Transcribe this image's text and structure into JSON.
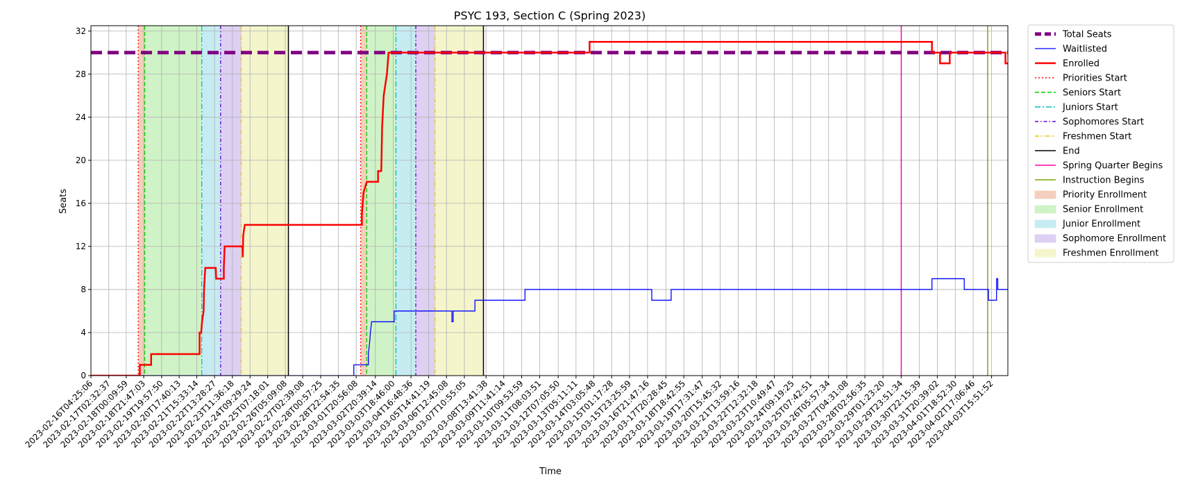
{
  "chart_data": {
    "type": "line",
    "title": "PSYC 193, Section C (Spring 2023)",
    "xlabel": "Time",
    "ylabel": "Seats",
    "ylim": [
      0,
      32.5
    ],
    "yticks": [
      0,
      4,
      8,
      12,
      16,
      20,
      24,
      28,
      32
    ],
    "x_range": [
      "2023-02-16T04:25:06",
      "2023-04-04T12:00:00"
    ],
    "grid": true,
    "legend_position": "outside-right",
    "xtick_labels": [
      "2023-02-16T04:25:06",
      "2023-02-17T02:32:37",
      "2023-02-18T00:09:59",
      "2023-02-18T21:47:03",
      "2023-02-19T19:57:50",
      "2023-02-20T17:40:13",
      "2023-02-21T15:33:14",
      "2023-02-22T13:28:27",
      "2023-02-23T11:36:18",
      "2023-02-24T09:29:24",
      "2023-02-25T07:18:01",
      "2023-02-26T05:09:08",
      "2023-02-27T02:39:08",
      "2023-02-28T00:57:25",
      "2023-02-28T22:54:35",
      "2023-03-01T20:56:08",
      "2023-03-02T20:39:14",
      "2023-03-03T18:46:00",
      "2023-03-04T16:48:36",
      "2023-03-05T14:41:19",
      "2023-03-06T12:45:08",
      "2023-03-07T10:55:05",
      "2023-03-08T13:41:38",
      "2023-03-09T11:41:14",
      "2023-03-10T09:53:59",
      "2023-03-11T08:03:51",
      "2023-03-12T07:05:50",
      "2023-03-13T05:11:11",
      "2023-03-14T03:05:48",
      "2023-03-15T01:17:28",
      "2023-03-15T23:25:59",
      "2023-03-16T21:47:16",
      "2023-03-17T20:28:45",
      "2023-03-18T18:42:55",
      "2023-03-19T17:31:47",
      "2023-03-20T15:45:32",
      "2023-03-21T13:59:16",
      "2023-03-22T12:32:18",
      "2023-03-23T10:49:47",
      "2023-03-24T09:19:25",
      "2023-03-25T07:42:51",
      "2023-03-26T05:57:34",
      "2023-03-27T04:31:08",
      "2023-03-28T02:56:35",
      "2023-03-29T01:23:20",
      "2023-03-29T23:51:34",
      "2023-03-30T22:15:39",
      "2023-03-31T20:39:02",
      "2023-04-01T18:52:30",
      "2023-04-02T17:06:46",
      "2023-04-03T15:51:52"
    ],
    "series": [
      {
        "name": "Total Seats",
        "color": "#800080",
        "style": "dashed-thick",
        "points": [
          [
            "2023-02-16T04:25:06",
            30
          ],
          [
            "2023-04-04T12:00:00",
            30
          ]
        ]
      },
      {
        "name": "Waitlisted",
        "color": "#0000ff",
        "style": "solid-thin",
        "points": [
          [
            "2023-02-16T04:25:06",
            0
          ],
          [
            "2023-03-01T18:00:00",
            0
          ],
          [
            "2023-03-01T18:00:00",
            1
          ],
          [
            "2023-03-02T12:00:00",
            1
          ],
          [
            "2023-03-02T12:00:00",
            2
          ],
          [
            "2023-03-02T13:30:00",
            3
          ],
          [
            "2023-03-02T14:30:00",
            4
          ],
          [
            "2023-03-02T16:00:00",
            5
          ],
          [
            "2023-03-03T20:00:00",
            5
          ],
          [
            "2023-03-03T20:00:00",
            6
          ],
          [
            "2023-03-06T19:30:00",
            6
          ],
          [
            "2023-03-06T19:30:00",
            5
          ],
          [
            "2023-03-06T21:00:00",
            5
          ],
          [
            "2023-03-06T21:00:00",
            6
          ],
          [
            "2023-03-08T00:00:00",
            6
          ],
          [
            "2023-03-08T00:00:00",
            7
          ],
          [
            "2023-03-10T14:00:00",
            7
          ],
          [
            "2023-03-10T14:00:00",
            8
          ],
          [
            "2023-03-17T03:00:00",
            8
          ],
          [
            "2023-03-17T03:00:00",
            7
          ],
          [
            "2023-03-18T03:00:00",
            7
          ],
          [
            "2023-03-18T03:00:00",
            8
          ],
          [
            "2023-03-31T14:00:00",
            8
          ],
          [
            "2023-03-31T14:00:00",
            9
          ],
          [
            "2023-04-02T06:00:00",
            9
          ],
          [
            "2023-04-02T06:00:00",
            8
          ],
          [
            "2023-04-03T12:00:00",
            8
          ],
          [
            "2023-04-03T12:00:00",
            7
          ],
          [
            "2023-04-03T22:00:00",
            7
          ],
          [
            "2023-04-03T22:00:00",
            9
          ],
          [
            "2023-04-03T23:30:00",
            9
          ],
          [
            "2023-04-03T23:30:00",
            8
          ],
          [
            "2023-04-04T12:00:00",
            8
          ]
        ]
      },
      {
        "name": "Enrolled",
        "color": "#ff0000",
        "style": "solid-thick",
        "points": [
          [
            "2023-02-16T04:25:06",
            0
          ],
          [
            "2023-02-18T17:00:00",
            0
          ],
          [
            "2023-02-18T17:00:00",
            1
          ],
          [
            "2023-02-19T07:00:00",
            1
          ],
          [
            "2023-02-19T07:00:00",
            2
          ],
          [
            "2023-02-21T19:00:00",
            2
          ],
          [
            "2023-02-21T19:00:00",
            4
          ],
          [
            "2023-02-21T21:00:00",
            4
          ],
          [
            "2023-02-21T22:00:00",
            5
          ],
          [
            "2023-02-22T00:00:00",
            6
          ],
          [
            "2023-02-22T00:30:00",
            8
          ],
          [
            "2023-02-22T02:00:00",
            10
          ],
          [
            "2023-02-22T15:00:00",
            10
          ],
          [
            "2023-02-22T15:30:00",
            9
          ],
          [
            "2023-02-23T01:00:00",
            9
          ],
          [
            "2023-02-23T01:00:00",
            10
          ],
          [
            "2023-02-23T02:00:00",
            12
          ],
          [
            "2023-02-24T00:00:00",
            12
          ],
          [
            "2023-02-24T00:30:00",
            11
          ],
          [
            "2023-02-24T01:00:00",
            13
          ],
          [
            "2023-02-24T03:00:00",
            14
          ],
          [
            "2023-03-02T04:00:00",
            14
          ],
          [
            "2023-03-02T04:00:00",
            15
          ],
          [
            "2023-03-02T06:00:00",
            17
          ],
          [
            "2023-03-02T10:00:00",
            18
          ],
          [
            "2023-03-03T00:00:00",
            18
          ],
          [
            "2023-03-03T00:00:00",
            19
          ],
          [
            "2023-03-03T04:00:00",
            19
          ],
          [
            "2023-03-03T05:00:00",
            23
          ],
          [
            "2023-03-03T07:00:00",
            26
          ],
          [
            "2023-03-03T09:00:00",
            27
          ],
          [
            "2023-03-03T11:00:00",
            28
          ],
          [
            "2023-03-03T13:00:00",
            30
          ],
          [
            "2023-03-13T22:00:00",
            30
          ],
          [
            "2023-03-13T22:00:00",
            31
          ],
          [
            "2023-03-31T14:00:00",
            31
          ],
          [
            "2023-03-31T14:00:00",
            30
          ],
          [
            "2023-04-01T00:00:00",
            30
          ],
          [
            "2023-04-01T00:00:00",
            29
          ],
          [
            "2023-04-01T12:00:00",
            29
          ],
          [
            "2023-04-01T12:00:00",
            30
          ],
          [
            "2023-04-04T09:00:00",
            30
          ],
          [
            "2023-04-04T09:00:00",
            29
          ],
          [
            "2023-04-04T12:00:00",
            29
          ]
        ]
      }
    ],
    "vlines": [
      {
        "name": "Priorities Start",
        "color": "#ff0000",
        "style": "dotted",
        "x": [
          "2023-02-18T15:00:00",
          "2023-03-02T02:30:00"
        ]
      },
      {
        "name": "Seniors Start",
        "color": "#00cc00",
        "style": "dashed",
        "x": [
          "2023-02-18T23:00:00",
          "2023-03-02T10:00:00"
        ]
      },
      {
        "name": "Juniors Start",
        "color": "#00bfbf",
        "style": "dashdot",
        "x": [
          "2023-02-21T21:40:00",
          "2023-03-03T22:10:00"
        ]
      },
      {
        "name": "Sophomores Start",
        "color": "#6600cc",
        "style": "densedashdot",
        "x": [
          "2023-02-22T21:00:00",
          "2023-03-04T22:45:00"
        ]
      },
      {
        "name": "Freshmen Start",
        "color": "#e6c800",
        "style": "dashdotdot",
        "x": [
          "2023-02-23T22:30:00",
          "2023-03-05T22:30:00"
        ]
      },
      {
        "name": "End",
        "color": "#000000",
        "style": "solid",
        "x": [
          "2023-02-26T09:00:00",
          "2023-03-08T10:30:00"
        ]
      },
      {
        "name": "Spring Quarter Begins",
        "color": "#ff00aa",
        "style": "solid",
        "x": [
          "2023-03-30T00:00:00"
        ]
      },
      {
        "name": "Instruction Begins",
        "color": "#77aa00",
        "style": "solid",
        "x": [
          "2023-04-03T11:00:00"
        ]
      }
    ],
    "spans": [
      {
        "name": "Priority Enrollment",
        "color": "#f4cfbd",
        "ranges": [
          [
            "2023-02-18T15:00:00",
            "2023-02-18T23:00:00"
          ],
          [
            "2023-03-02T02:30:00",
            "2023-03-02T10:00:00"
          ]
        ]
      },
      {
        "name": "Senior Enrollment",
        "color": "#cff3c6",
        "ranges": [
          [
            "2023-02-18T23:00:00",
            "2023-02-21T21:40:00"
          ],
          [
            "2023-03-02T10:00:00",
            "2023-03-03T22:10:00"
          ]
        ]
      },
      {
        "name": "Junior Enrollment",
        "color": "#c6ecf2",
        "ranges": [
          [
            "2023-02-21T21:40:00",
            "2023-02-22T21:00:00"
          ],
          [
            "2023-03-03T22:10:00",
            "2023-03-04T22:45:00"
          ]
        ]
      },
      {
        "name": "Sophomore Enrollment",
        "color": "#ddd0f2",
        "ranges": [
          [
            "2023-02-22T21:00:00",
            "2023-02-23T22:30:00"
          ],
          [
            "2023-03-04T22:45:00",
            "2023-03-05T22:30:00"
          ]
        ]
      },
      {
        "name": "Freshmen Enrollment",
        "color": "#f5f5cc",
        "ranges": [
          [
            "2023-02-23T22:30:00",
            "2023-02-26T09:00:00"
          ],
          [
            "2023-03-05T22:30:00",
            "2023-03-08T10:30:00"
          ]
        ]
      }
    ],
    "legend": [
      {
        "label": "Total Seats",
        "kind": "line",
        "color": "#800080",
        "style": "dashed-thick"
      },
      {
        "label": "Waitlisted",
        "kind": "line",
        "color": "#0000ff",
        "style": "solid-thin"
      },
      {
        "label": "Enrolled",
        "kind": "line",
        "color": "#ff0000",
        "style": "solid-thick"
      },
      {
        "label": "Priorities Start",
        "kind": "line",
        "color": "#ff0000",
        "style": "dotted"
      },
      {
        "label": "Seniors Start",
        "kind": "line",
        "color": "#00cc00",
        "style": "dashed"
      },
      {
        "label": "Juniors Start",
        "kind": "line",
        "color": "#00bfbf",
        "style": "dashdot"
      },
      {
        "label": "Sophomores Start",
        "kind": "line",
        "color": "#6600cc",
        "style": "densedashdot"
      },
      {
        "label": "Freshmen Start",
        "kind": "line",
        "color": "#e6c800",
        "style": "dashdotdot"
      },
      {
        "label": "End",
        "kind": "line",
        "color": "#000000",
        "style": "solid"
      },
      {
        "label": "Spring Quarter Begins",
        "kind": "line",
        "color": "#ff00aa",
        "style": "solid"
      },
      {
        "label": "Instruction Begins",
        "kind": "line",
        "color": "#77aa00",
        "style": "solid"
      },
      {
        "label": "Priority Enrollment",
        "kind": "patch",
        "color": "#f4cfbd"
      },
      {
        "label": "Senior Enrollment",
        "kind": "patch",
        "color": "#cff3c6"
      },
      {
        "label": "Junior Enrollment",
        "kind": "patch",
        "color": "#c6ecf2"
      },
      {
        "label": "Sophomore Enrollment",
        "kind": "patch",
        "color": "#ddd0f2"
      },
      {
        "label": "Freshmen Enrollment",
        "kind": "patch",
        "color": "#f5f5cc"
      }
    ]
  }
}
